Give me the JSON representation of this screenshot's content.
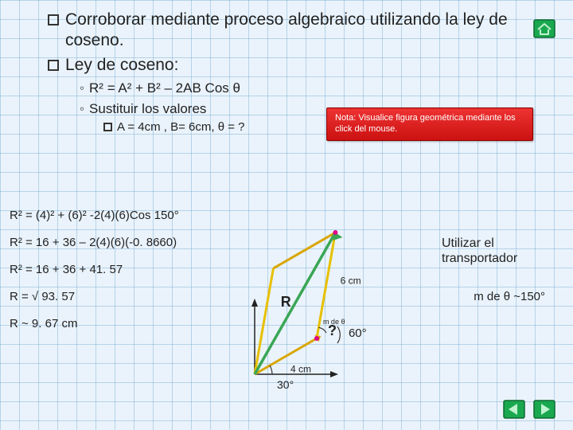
{
  "heading": {
    "line1": "Corroborar mediante proceso algebraico utilizando la ley de coseno.",
    "line2": "Ley de coseno:"
  },
  "sub1": "R² = A² + B² – 2AB Cos θ",
  "sub2": "Sustituir  los  valores",
  "subsub": "A = 4cm , B= 6cm, θ = ?",
  "note": "Nota: Visualice figura geométrica mediante los click del mouse.",
  "calc": {
    "l1": "R² = (4)² + (6)² -2(4)(6)Cos 150°",
    "l2": "R² = 16 + 36 – 2(4)(6)(-0. 8660)",
    "l3": "R² = 16 + 36 + 41. 57",
    "l4": "R = √ 93. 57",
    "l5": "R ~ 9. 67 cm"
  },
  "util_text": "Utilizar el transportador",
  "m_theta": "m de θ ~150°",
  "diagram": {
    "R_label": "R",
    "q_label": "?",
    "q_sup": "m de θ",
    "sixty": "60°",
    "thirty": "30°",
    "sixcm": "6 cm",
    "fourcm": "4 cm",
    "colors": {
      "axis": "#222222",
      "vecA": "#d9a600",
      "vecB": "#e8c000",
      "resultant": "#3aa655"
    }
  },
  "nav_colors": {
    "fill": "#1aa84f",
    "border": "#0c6b30",
    "glyph": "#bff2cf"
  }
}
